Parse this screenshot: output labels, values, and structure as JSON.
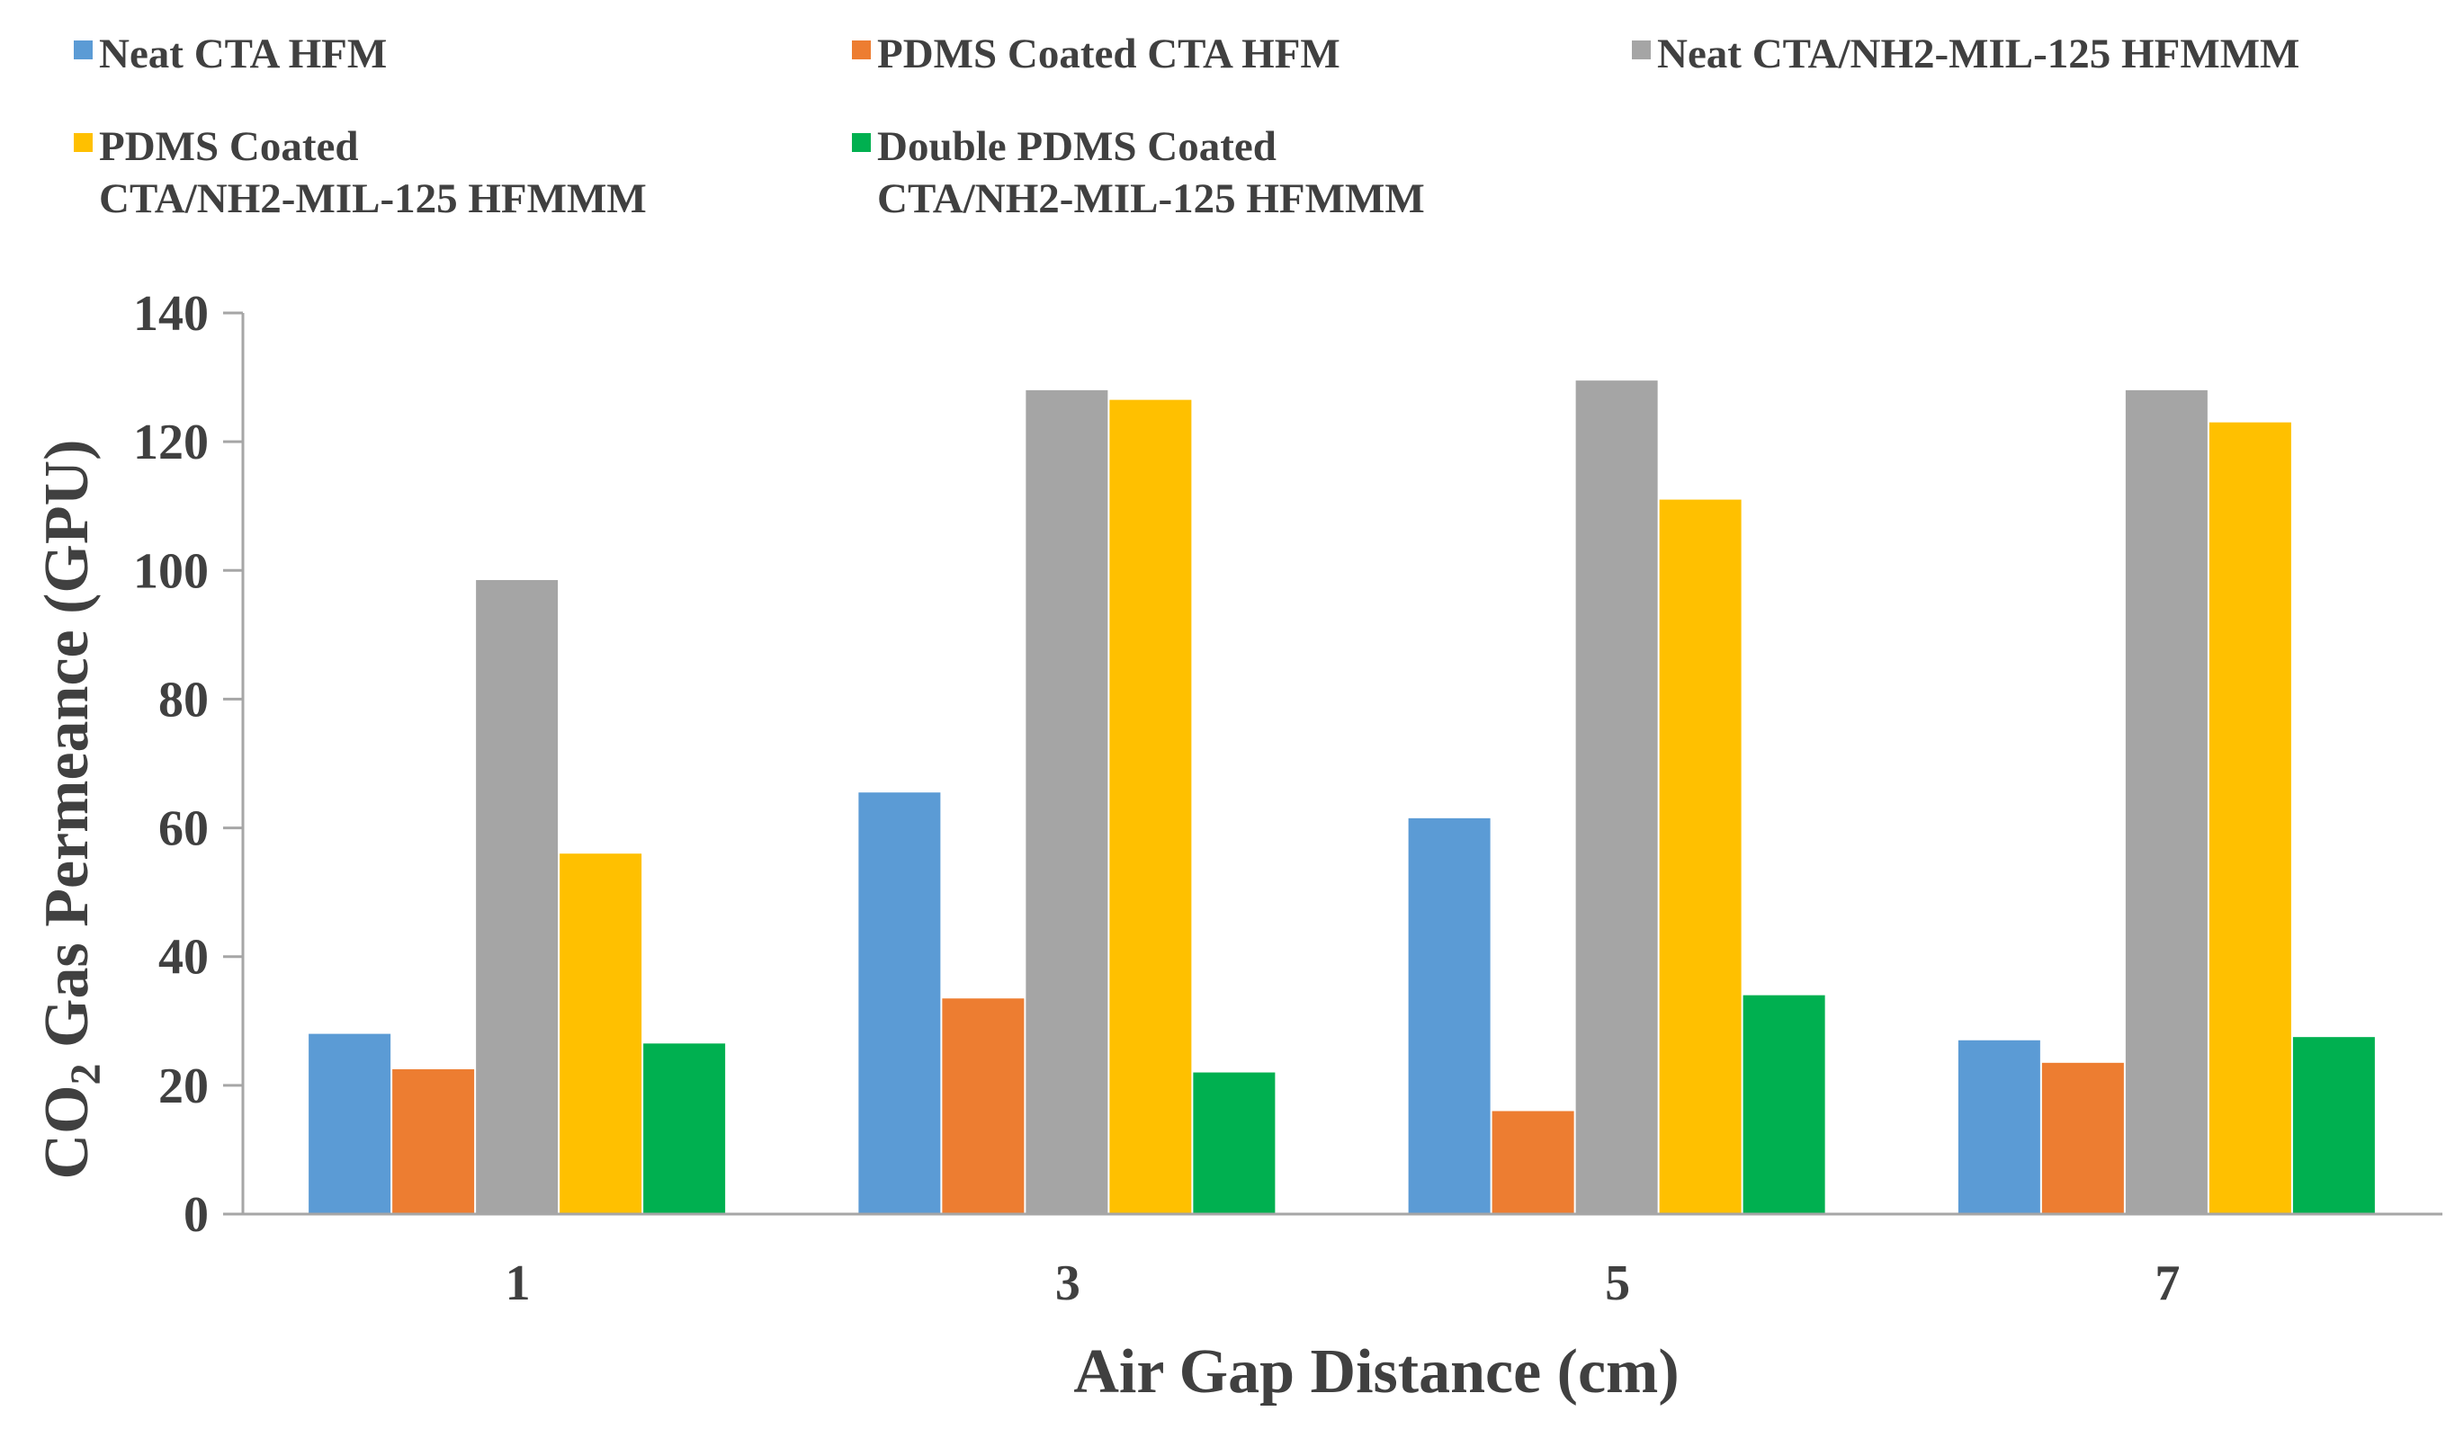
{
  "chart_data": {
    "type": "bar",
    "categories": [
      "1",
      "3",
      "5",
      "7"
    ],
    "series": [
      {
        "name": "Neat CTA HFM",
        "color": "#5b9bd5",
        "values": [
          28,
          65.5,
          61.5,
          27
        ]
      },
      {
        "name": "PDMS Coated CTA HFM",
        "color": "#ed7d31",
        "values": [
          22.5,
          33.5,
          16,
          23.5
        ]
      },
      {
        "name": "Neat CTA/NH2-MIL-125 HFMMM",
        "color": "#a5a5a5",
        "values": [
          98.5,
          128,
          129.5,
          128
        ]
      },
      {
        "name": "PDMS Coated CTA/NH2-MIL-125 HFMMM",
        "color": "#ffc000",
        "values": [
          56,
          126.5,
          111,
          123
        ]
      },
      {
        "name": "Double PDMS Coated CTA/NH2-MIL-125 HFMMM",
        "color": "#00b050",
        "values": [
          26.5,
          22,
          34,
          27.5
        ]
      }
    ],
    "legend_lines": [
      [
        "Neat CTA HFM"
      ],
      [
        "PDMS Coated CTA HFM"
      ],
      [
        "Neat CTA/NH2-MIL-125 HFMMM"
      ],
      [
        "PDMS Coated",
        "CTA/NH2-MIL-125 HFMMM"
      ],
      [
        "Double PDMS Coated",
        "CTA/NH2-MIL-125 HFMMM"
      ]
    ],
    "xlabel": "Air Gap Distance (cm)",
    "ylabel": {
      "prefix": "CO",
      "subscript": "2",
      "suffix": " Gas Permeance (GPU)"
    },
    "ylim": [
      0,
      140
    ],
    "yticks": [
      0,
      20,
      40,
      60,
      80,
      100,
      120,
      140
    ],
    "grid": false,
    "legend_position": "top"
  }
}
